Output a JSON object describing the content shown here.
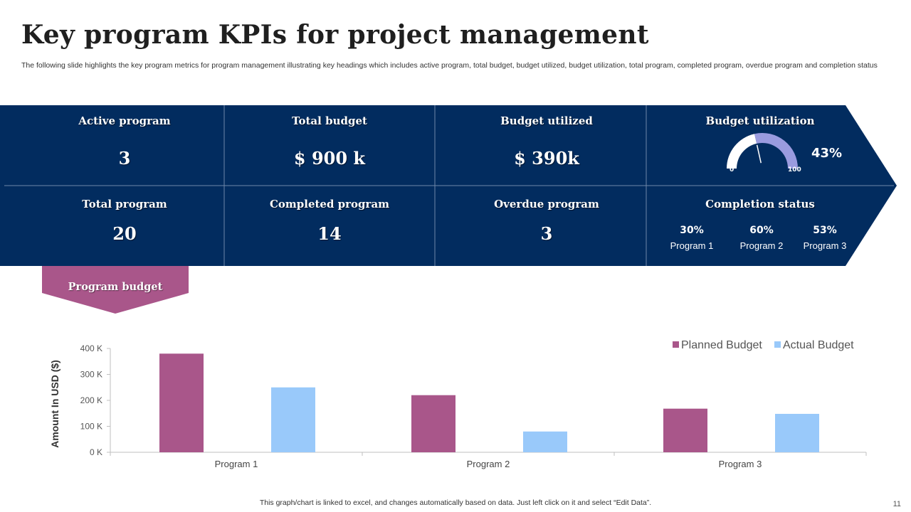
{
  "title": "Key program KPIs for project management",
  "subtitle": "The following slide highlights the key program metrics for program management illustrating key headings which includes active program, total budget, budget utilized, budget utilization, total program, completed program, overdue program and completion status",
  "colors": {
    "banner": "#022c5f",
    "planned": "#a9568a",
    "actual": "#99c9fa",
    "gaugeFill": "#9a9bdf",
    "gaugeTrack": "#ffffff"
  },
  "kpis": {
    "active_program": {
      "label": "Active program",
      "value": "3"
    },
    "total_budget": {
      "label": "Total budget",
      "value": "$ 900 k"
    },
    "budget_utilized": {
      "label": "Budget utilized",
      "value": "$ 390k"
    },
    "budget_utilization": {
      "label": "Budget utilization",
      "percent": "43%",
      "percent_value": 43,
      "min": "0",
      "max": "100"
    },
    "total_program": {
      "label": "Total program",
      "value": "20"
    },
    "completed_program": {
      "label": "Completed program",
      "value": "14"
    },
    "overdue_program": {
      "label": "Overdue program",
      "value": "3"
    },
    "completion_status": {
      "label": "Completion status",
      "items": [
        {
          "percent": "30%",
          "program": "Program  1"
        },
        {
          "percent": "60%",
          "program": "Program  2"
        },
        {
          "percent": "53%",
          "program": "Program  3"
        }
      ]
    }
  },
  "program_budget_label": "Program budget",
  "chart_data": {
    "type": "bar",
    "categories": [
      "Program 1",
      "Program  2",
      "Program 3"
    ],
    "series": [
      {
        "name": "Planned Budget",
        "values": [
          380,
          220,
          168
        ]
      },
      {
        "name": "Actual Budget",
        "values": [
          250,
          80,
          148
        ]
      }
    ],
    "ylabel": "Amount In USD ($)",
    "ylim": [
      0,
      400
    ],
    "yticks": [
      0,
      100,
      200,
      300,
      400
    ],
    "ytick_labels": [
      "0 K",
      "100 K",
      "200 K",
      "300 K",
      "400 K"
    ],
    "legend": "top-right",
    "grid": false
  },
  "footnote": "This graph/chart is linked to excel,  and changes automatically based on data. Just left click on it and select “Edit Data”.",
  "page_number": "11"
}
